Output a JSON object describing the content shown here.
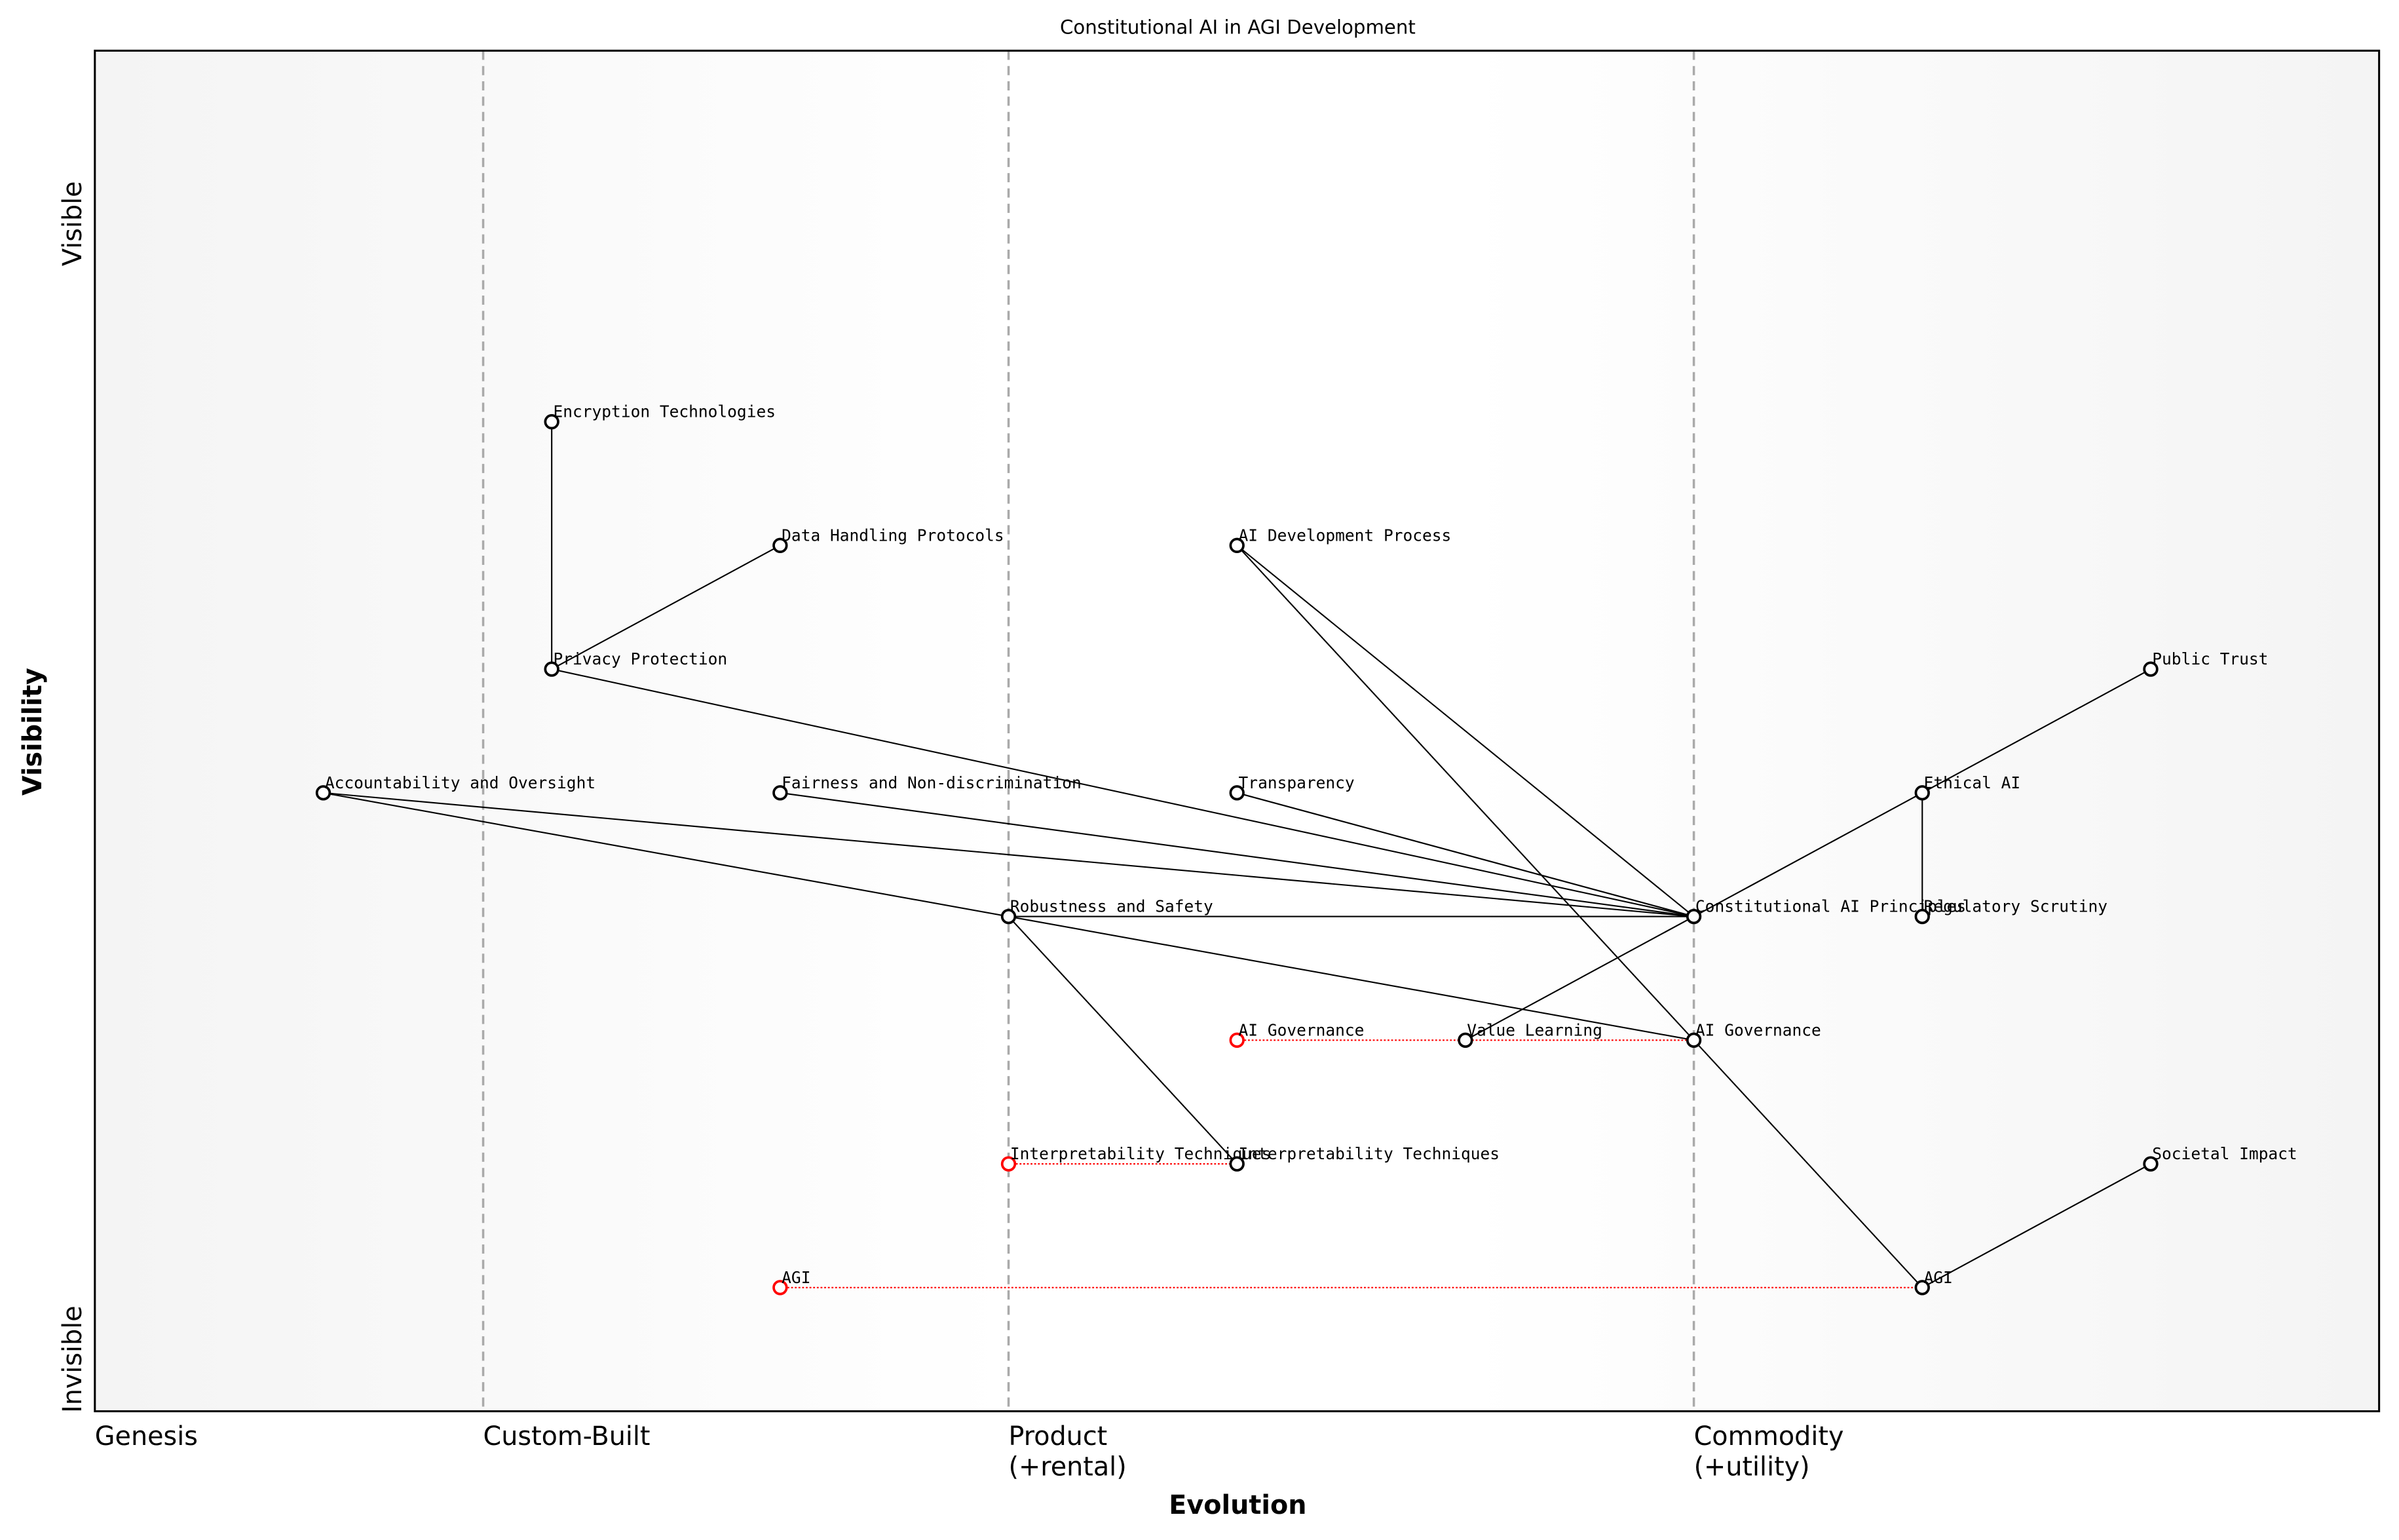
{
  "chart_data": {
    "type": "wardley-map",
    "title": "Constitutional AI in AGI Development",
    "xlabel": "Evolution",
    "ylabel": "Visibility",
    "xlim": [
      0,
      1
    ],
    "ylim": [
      0,
      1.1
    ],
    "y_ticks": [
      {
        "label": "Visible",
        "value": 0.98
      },
      {
        "label": "Invisible",
        "value": 0.05
      }
    ],
    "stages": [
      {
        "label": "Genesis",
        "value": 0.0
      },
      {
        "label": "Custom-Built",
        "value": 0.17
      },
      {
        "label": "Product",
        "sub": "(+rental)",
        "value": 0.4
      },
      {
        "label": "Commodity",
        "sub": "(+utility)",
        "value": 0.7
      }
    ],
    "colors": {
      "node": "#000000",
      "evolve": "#ff0000",
      "divider": "#aaaaaa",
      "edge_bg": "#f4f4f4"
    },
    "nodes": [
      {
        "id": "enc",
        "label": "Encryption Technologies",
        "x": 0.2,
        "y": 0.8
      },
      {
        "id": "dhp",
        "label": "Data Handling Protocols",
        "x": 0.3,
        "y": 0.7
      },
      {
        "id": "aidev",
        "label": "AI Development Process",
        "x": 0.5,
        "y": 0.7
      },
      {
        "id": "priv",
        "label": "Privacy Protection",
        "x": 0.2,
        "y": 0.6
      },
      {
        "id": "trust",
        "label": "Public Trust",
        "x": 0.9,
        "y": 0.6
      },
      {
        "id": "acc",
        "label": "Accountability and Oversight",
        "x": 0.1,
        "y": 0.5
      },
      {
        "id": "fair",
        "label": "Fairness and Non-discrimination",
        "x": 0.3,
        "y": 0.5
      },
      {
        "id": "transp",
        "label": "Transparency",
        "x": 0.5,
        "y": 0.5
      },
      {
        "id": "eth",
        "label": "Ethical AI",
        "x": 0.8,
        "y": 0.5
      },
      {
        "id": "rob",
        "label": "Robustness and Safety",
        "x": 0.4,
        "y": 0.4
      },
      {
        "id": "cai",
        "label": "Constitutional AI Principles",
        "x": 0.7,
        "y": 0.4
      },
      {
        "id": "reg",
        "label": "Regulatory Scrutiny",
        "x": 0.8,
        "y": 0.4
      },
      {
        "id": "gov_old",
        "label": "AI Governance",
        "x": 0.5,
        "y": 0.3,
        "evolving": true
      },
      {
        "id": "vl",
        "label": "Value Learning",
        "x": 0.6,
        "y": 0.3
      },
      {
        "id": "gov",
        "label": "AI Governance",
        "x": 0.7,
        "y": 0.3
      },
      {
        "id": "interp_old",
        "label": "Interpretability Techniques",
        "x": 0.4,
        "y": 0.2,
        "evolving": true
      },
      {
        "id": "interp",
        "label": "Interpretability Techniques",
        "x": 0.5,
        "y": 0.2
      },
      {
        "id": "soc",
        "label": "Societal Impact",
        "x": 0.9,
        "y": 0.2
      },
      {
        "id": "agi_old",
        "label": "AGI",
        "x": 0.3,
        "y": 0.1,
        "evolving": true
      },
      {
        "id": "agi",
        "label": "AGI",
        "x": 0.8,
        "y": 0.1
      }
    ],
    "edges": [
      [
        "enc",
        "priv"
      ],
      [
        "priv",
        "dhp"
      ],
      [
        "priv",
        "cai"
      ],
      [
        "acc",
        "cai"
      ],
      [
        "acc",
        "rob"
      ],
      [
        "fair",
        "cai"
      ],
      [
        "transp",
        "cai"
      ],
      [
        "aidev",
        "cai"
      ],
      [
        "aidev",
        "gov"
      ],
      [
        "rob",
        "cai"
      ],
      [
        "rob",
        "gov"
      ],
      [
        "rob",
        "interp"
      ],
      [
        "cai",
        "eth"
      ],
      [
        "cai",
        "vl"
      ],
      [
        "eth",
        "trust"
      ],
      [
        "eth",
        "reg"
      ],
      [
        "gov",
        "agi"
      ],
      [
        "agi",
        "soc"
      ]
    ],
    "evolutions": [
      [
        "gov_old",
        "gov"
      ],
      [
        "interp_old",
        "interp"
      ],
      [
        "agi_old",
        "agi"
      ]
    ]
  }
}
